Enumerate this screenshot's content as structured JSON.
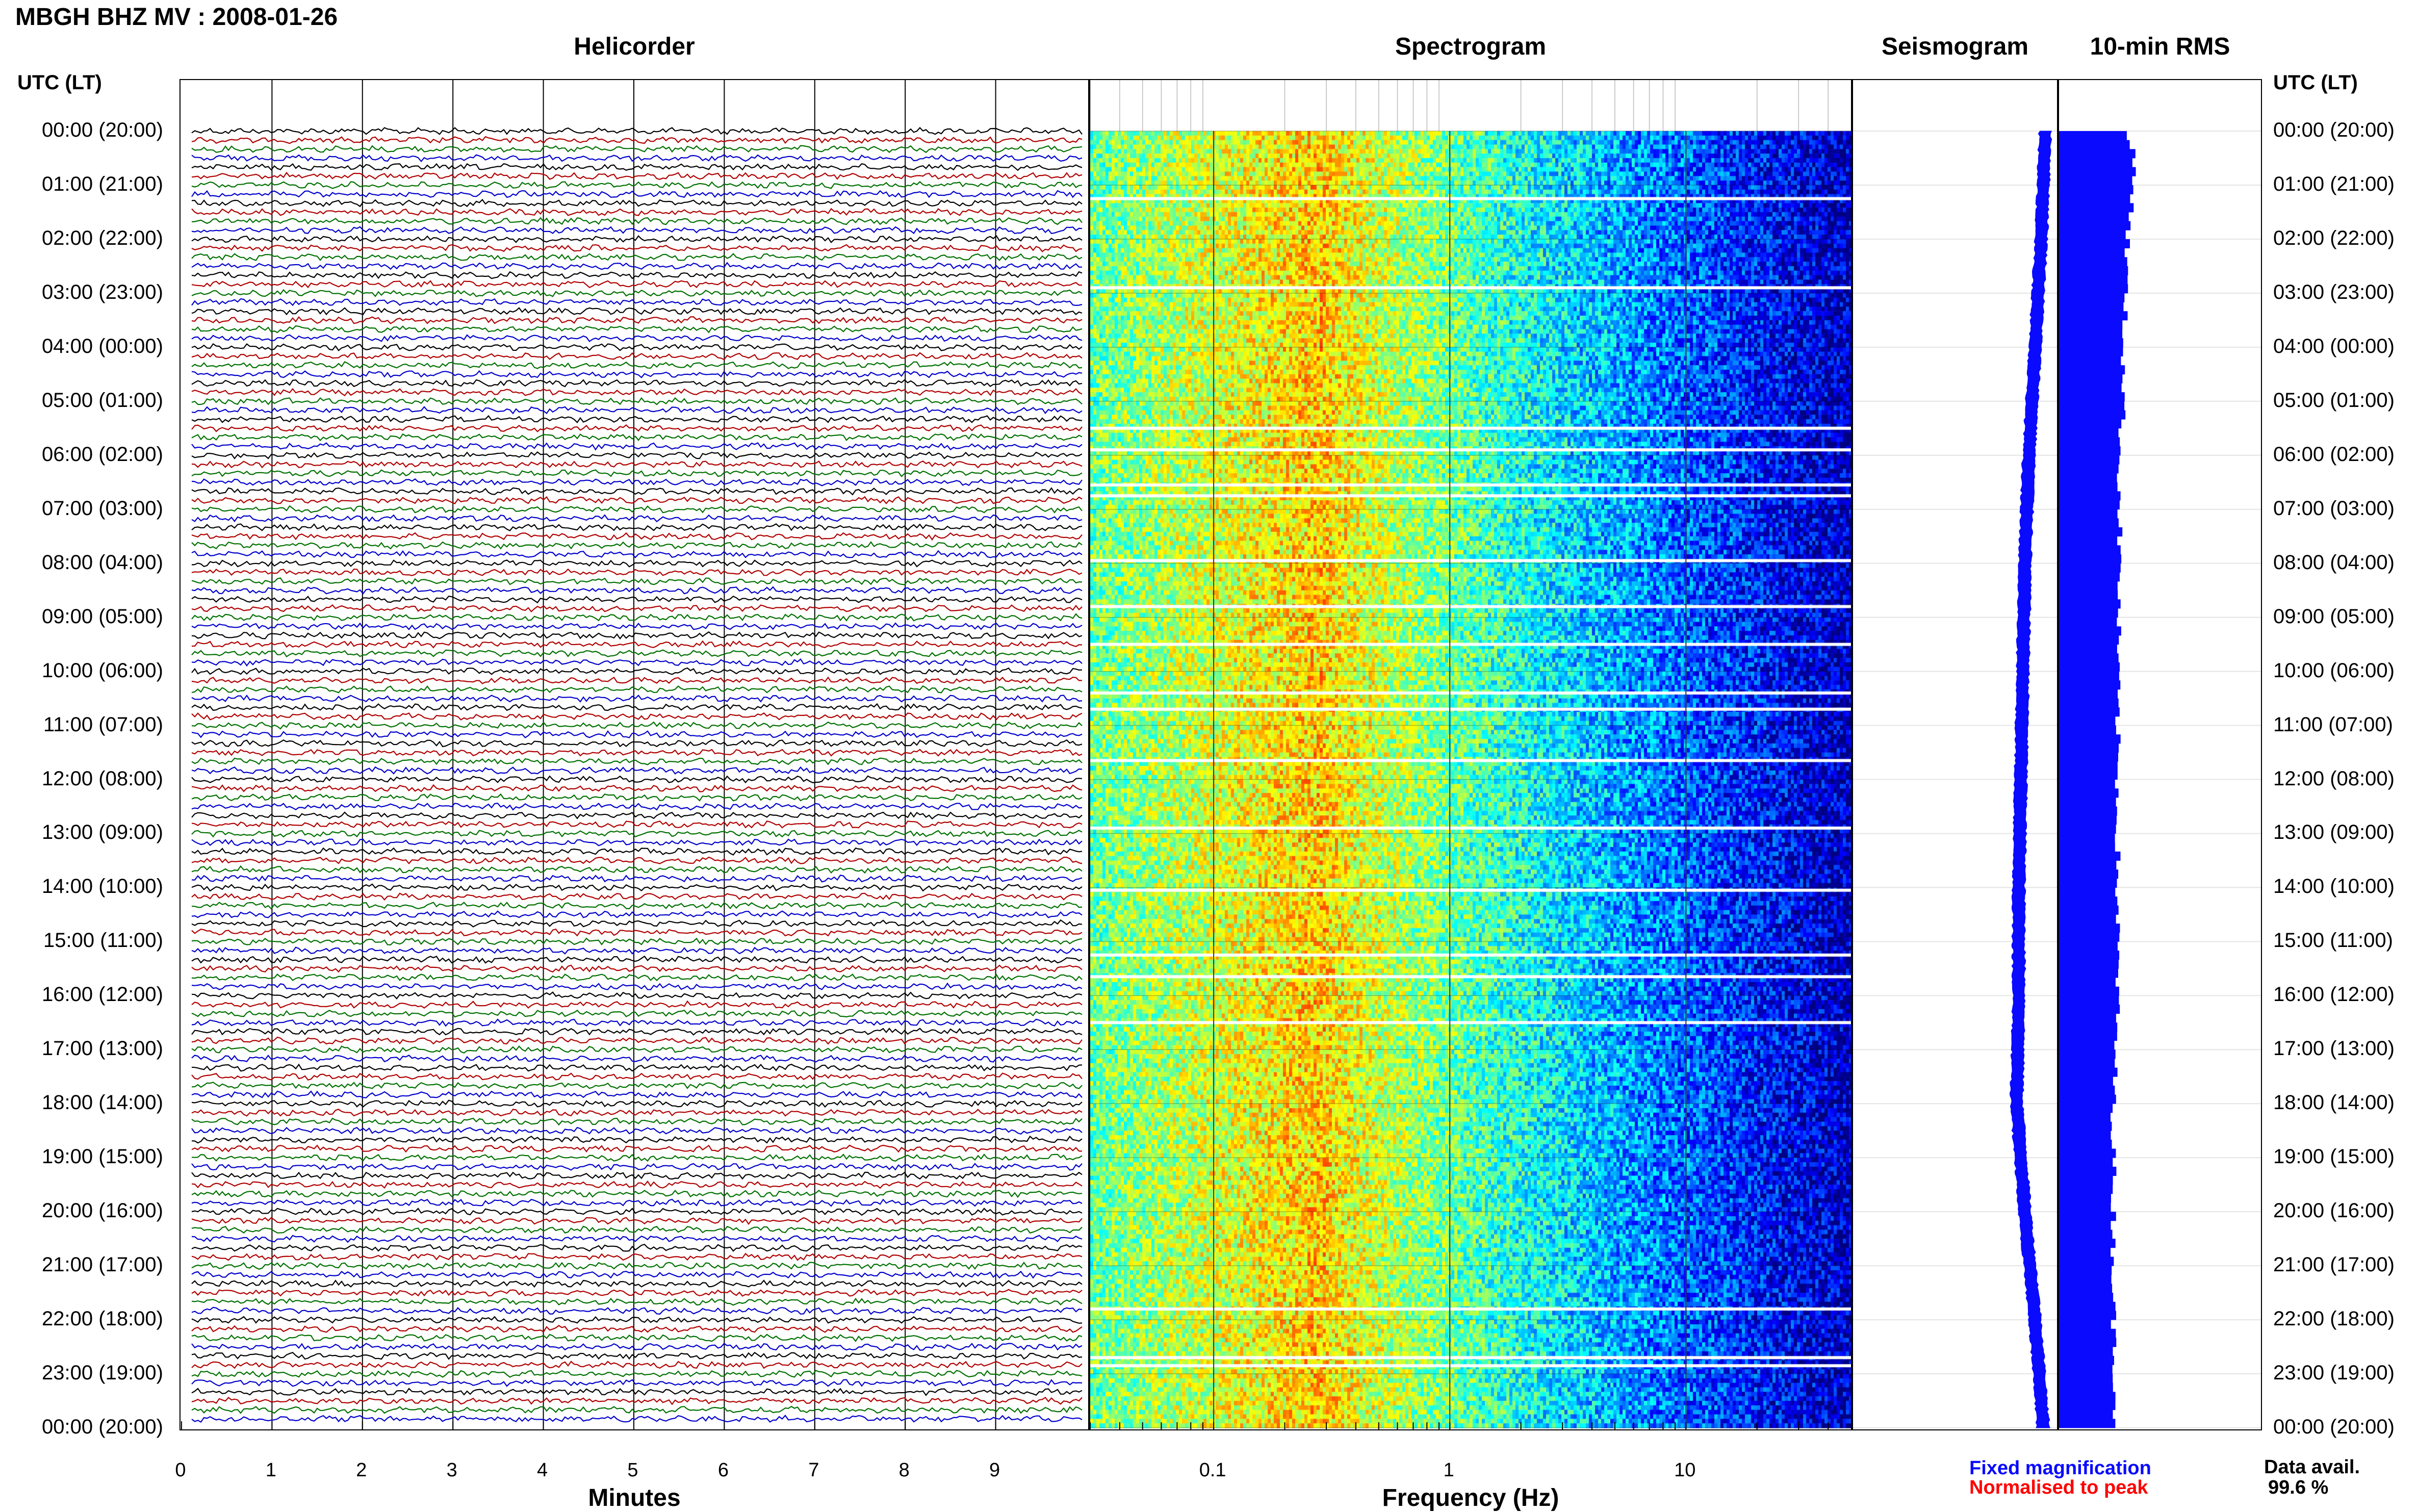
{
  "title": "MBGH BHZ MV : 2008-01-26",
  "panels": {
    "helicorder": "Helicorder",
    "spectrogram": "Spectrogram",
    "seismogram": "Seismogram",
    "rms": "10-min RMS"
  },
  "utc_label": "UTC (LT)",
  "time_labels": [
    "00:00 (20:00)",
    "01:00 (21:00)",
    "02:00 (22:00)",
    "03:00 (23:00)",
    "04:00 (00:00)",
    "05:00 (01:00)",
    "06:00 (02:00)",
    "07:00 (03:00)",
    "08:00 (04:00)",
    "09:00 (05:00)",
    "10:00 (06:00)",
    "11:00 (07:00)",
    "12:00 (08:00)",
    "13:00 (09:00)",
    "14:00 (10:00)",
    "15:00 (11:00)",
    "16:00 (12:00)",
    "17:00 (13:00)",
    "18:00 (14:00)",
    "19:00 (15:00)",
    "20:00 (16:00)",
    "21:00 (17:00)",
    "22:00 (18:00)",
    "23:00 (19:00)",
    "00:00 (20:00)"
  ],
  "helicorder_axis": {
    "label": "Minutes",
    "ticks": [
      "0",
      "1",
      "2",
      "3",
      "4",
      "5",
      "6",
      "7",
      "8",
      "9"
    ]
  },
  "spectrogram_axis": {
    "label": "Frequency (Hz)",
    "ticks": [
      "0.1",
      "1",
      "10"
    ]
  },
  "legend": {
    "fixed": "Fixed magnification",
    "normalised": "Normalised to peak"
  },
  "availability": {
    "label": "Data avail.",
    "value": "99.6 %"
  },
  "colors": {
    "trace_cycle": [
      "#000000",
      "#b00000",
      "#007000",
      "#0000cc"
    ],
    "seismogram": "#0a0aff",
    "rms": "#0a0aff",
    "legend_fixed": "#0a0aff",
    "legend_norm": "#ff0000"
  },
  "chart_data": [
    {
      "type": "line",
      "title": "Helicorder",
      "xlabel": "Minutes",
      "xlim": [
        0,
        10
      ],
      "ylabel": "UTC (LT)",
      "rows_per_hour": 6,
      "hours": 24,
      "grid": true
    },
    {
      "type": "heatmap",
      "title": "Spectrogram",
      "xlabel": "Frequency (Hz)",
      "xscale": "log",
      "xlim": [
        0.03,
        50
      ],
      "peak_band_hz": [
        0.2,
        0.4
      ],
      "gap_hours": [
        1.25,
        2.9,
        5.5,
        5.9,
        6.55,
        6.75,
        7.95,
        8.8,
        9.5,
        10.4,
        10.7,
        11.65,
        12.9,
        14.05,
        15.25,
        15.65,
        16.5,
        21.8,
        22.7,
        22.85
      ]
    },
    {
      "type": "line",
      "title": "Seismogram",
      "ylabel": "UTC (LT)",
      "hours": [
        0,
        2,
        4,
        6,
        8,
        10,
        12,
        14,
        16,
        18,
        20,
        22,
        24
      ],
      "offset": [
        0.48,
        0.46,
        0.43,
        0.4,
        0.38,
        0.37,
        0.36,
        0.35,
        0.35,
        0.34,
        0.38,
        0.43,
        0.47
      ]
    },
    {
      "type": "bar",
      "title": "10-min RMS",
      "ylabel": "UTC (LT)",
      "hours": [
        0,
        0.5,
        1,
        2,
        3,
        4,
        5,
        6,
        8,
        10,
        12,
        14,
        16,
        18,
        20,
        22,
        23,
        24
      ],
      "values": [
        0.33,
        0.38,
        0.37,
        0.34,
        0.33,
        0.32,
        0.32,
        0.3,
        0.3,
        0.29,
        0.29,
        0.29,
        0.29,
        0.27,
        0.27,
        0.27,
        0.28,
        0.28
      ]
    }
  ]
}
